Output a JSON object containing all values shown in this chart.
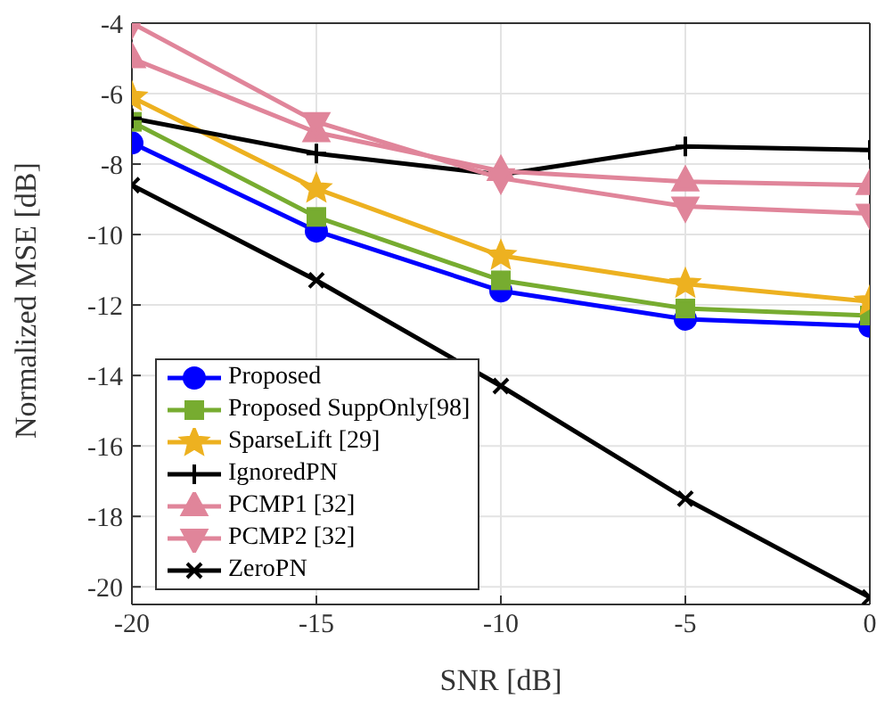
{
  "chart_data": {
    "type": "line",
    "xlabel": "SNR [dB]",
    "ylabel": "Normalized MSE [dB]",
    "x": [
      -20,
      -15,
      -10,
      -5,
      0
    ],
    "series": [
      {
        "name": "Proposed",
        "color": "#0000ff",
        "marker": "circle",
        "values": [
          -7.4,
          -9.9,
          -11.6,
          -12.4,
          -12.6
        ]
      },
      {
        "name": "Proposed SuppOnly[98]",
        "color": "#77ac30",
        "marker": "square",
        "values": [
          -6.8,
          -9.5,
          -11.3,
          -12.1,
          -12.3
        ]
      },
      {
        "name": "SparseLift [29]",
        "color": "#edb120",
        "marker": "star",
        "values": [
          -6.1,
          -8.7,
          -10.6,
          -11.4,
          -11.9
        ]
      },
      {
        "name": "IgnoredPN",
        "color": "#000000",
        "marker": "plus",
        "values": [
          -6.7,
          -7.7,
          -8.3,
          -7.5,
          -7.6
        ]
      },
      {
        "name": "PCMP1 [32]",
        "color": "#e0859a",
        "marker": "triangle",
        "values": [
          -5.0,
          -7.1,
          -8.2,
          -8.5,
          -8.6
        ]
      },
      {
        "name": "PCMP2 [32]",
        "color": "#e0859a",
        "marker": "triangle_down",
        "values": [
          -4.0,
          -6.8,
          -8.4,
          -9.2,
          -9.4
        ]
      },
      {
        "name": "ZeroPN",
        "color": "#000000",
        "marker": "cross",
        "values": [
          -8.6,
          -11.3,
          -14.3,
          -17.5,
          -20.3
        ]
      }
    ],
    "xlim": [
      -20,
      0
    ],
    "xticks": [
      -20,
      -15,
      -10,
      -5,
      0
    ],
    "ylim": [
      -20.5,
      -4
    ],
    "yticks": [
      -20,
      -18,
      -16,
      -14,
      -12,
      -10,
      -8,
      -6,
      -4
    ],
    "grid": true,
    "legend": "bottom left",
    "line_style": "solid"
  }
}
